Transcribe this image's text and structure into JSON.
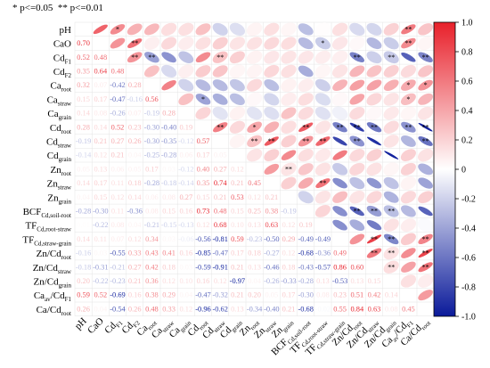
{
  "note": "* p<=0.05  ** p<=0.01",
  "chart_data": {
    "type": "heatmap",
    "colorscale": {
      "min": -1.0,
      "max": 1.0,
      "low_color": "#0a1a9a",
      "mid_color": "#ffffff",
      "high_color": "#e8202a"
    },
    "colorbar_ticks": [
      "1.0",
      "0.8",
      "0.6",
      "0.4",
      "0.2",
      "0",
      "-0.2",
      "-0.4",
      "-0.6",
      "-0.8",
      "-1.0"
    ],
    "variables": [
      {
        "base": "pH",
        "sub": ""
      },
      {
        "base": "CaO",
        "sub": ""
      },
      {
        "base": "Cd",
        "sub": "F1"
      },
      {
        "base": "Cd",
        "sub": "F2"
      },
      {
        "base": "Ca",
        "sub": "root"
      },
      {
        "base": "Ca",
        "sub": "straw"
      },
      {
        "base": "Ca",
        "sub": "grain"
      },
      {
        "base": "Cd",
        "sub": "root"
      },
      {
        "base": "Cd",
        "sub": "straw"
      },
      {
        "base": "Cd",
        "sub": "grain"
      },
      {
        "base": "Zn",
        "sub": "root"
      },
      {
        "base": "Zn",
        "sub": "straw"
      },
      {
        "base": "Zn",
        "sub": "grain"
      },
      {
        "base": "BCF",
        "sub": "Cd,soil-root"
      },
      {
        "base": "TF",
        "sub": "Cd,root-straw"
      },
      {
        "base": "TF",
        "sub": "Cd,straw-grain"
      },
      {
        "base": "Zn/Cd",
        "sub": "root"
      },
      {
        "base": "Zn/Cd",
        "sub": "straw"
      },
      {
        "base": "Zn/Cd",
        "sub": "grain"
      },
      {
        "base": "Ca",
        "sub": "av",
        "suffix": "/Cd",
        "suffix_sub": "F1"
      },
      {
        "base": "Ca/Cd",
        "sub": "root"
      }
    ],
    "lower_values": [
      [],
      [
        0.7
      ],
      [
        0.52,
        0.48
      ],
      [
        0.35,
        0.64,
        0.48
      ],
      [
        0.32,
        0.07,
        -0.42,
        0.28
      ],
      [
        0.15,
        0.17,
        -0.47,
        -0.16,
        0.56
      ],
      [
        0.14,
        0.08,
        -0.26,
        0.07,
        -0.19,
        0.28
      ],
      [
        0.28,
        0.14,
        0.52,
        0.23,
        -0.3,
        -0.4,
        0.19
      ],
      [
        -0.19,
        0.21,
        0.27,
        0.26,
        -0.3,
        -0.35,
        -0.12,
        0.57
      ],
      [
        -0.14,
        0.12,
        0.21,
        0.04,
        -0.25,
        -0.28,
        0.06,
        0.17,
        0.05
      ],
      [
        0.05,
        0.13,
        0.06,
        0.05,
        0.17,
        0.03,
        -0.12,
        0.4,
        0.27,
        0.12
      ],
      [
        0.14,
        0.17,
        0.11,
        0.18,
        -0.28,
        -0.18,
        -0.14,
        0.35,
        0.74,
        0.21,
        0.45
      ],
      [
        0.04,
        0.15,
        0.12,
        0.14,
        0.06,
        0.08,
        0.27,
        0.15,
        0.21,
        0.53,
        0.12,
        0.21
      ],
      [
        -0.28,
        -0.3,
        0.11,
        -0.36,
        0.08,
        0.15,
        0.16,
        0.73,
        0.48,
        0.15,
        0.25,
        0.38,
        -0.19
      ],
      [
        0.01,
        -0.22,
        0.08,
        0.04,
        -0.21,
        -0.15,
        -0.13,
        0.12,
        0.68,
        0.1,
        0.13,
        0.63,
        0.12,
        0.19
      ],
      [
        0.14,
        0.11,
        0.07,
        0.12,
        0.34,
        0.03,
        -0.06,
        -0.56,
        -0.81,
        0.59,
        -0.23,
        -0.5,
        0.29,
        -0.49,
        -0.49
      ],
      [
        -0.16,
        0.03,
        -0.55,
        0.33,
        0.43,
        0.41,
        0.16,
        -0.85,
        -0.47,
        0.17,
        0.18,
        -0.27,
        0.12,
        -0.68,
        -0.36,
        0.49
      ],
      [
        -0.18,
        -0.31,
        -0.21,
        0.27,
        0.42,
        0.18,
        0.03,
        -0.59,
        -0.91,
        0.21,
        0.13,
        -0.46,
        0.18,
        -0.43,
        -0.57,
        0.86,
        0.6
      ],
      [
        0.2,
        -0.22,
        -0.23,
        0.21,
        0.36,
        0.12,
        0.1,
        0.16,
        0.12,
        -0.97,
        0.04,
        -0.26,
        -0.33,
        -0.28,
        0.13,
        -0.53,
        0.13,
        0.15
      ],
      [
        0.59,
        0.52,
        -0.69,
        0.16,
        0.38,
        0.29,
        0.04,
        -0.47,
        -0.32,
        0.21,
        0.2,
        0.05,
        0.17,
        -0.3,
        0.08,
        0.23,
        0.51,
        0.42,
        0.14
      ],
      [
        0.26,
        0.04,
        -0.54,
        0.26,
        0.48,
        0.33,
        0.12,
        -0.96,
        -0.62,
        0.13,
        -0.34,
        -0.4,
        0.21,
        -0.68,
        -0.02,
        0.55,
        0.84,
        0.63,
        0.08,
        0.45
      ]
    ],
    "upper_significance": [
      [
        0,
        1,
        0,
        0,
        0,
        0,
        0,
        0,
        0,
        0,
        0,
        0,
        0,
        0,
        0,
        0,
        0,
        0,
        2,
        0
      ],
      [
        0,
        2,
        0,
        0,
        0,
        0,
        0,
        0,
        0,
        0,
        0,
        0,
        1,
        0,
        0,
        0,
        0,
        2,
        0
      ],
      [
        2,
        2,
        0,
        0,
        0,
        2,
        0,
        0,
        0,
        0,
        0,
        0,
        0,
        2,
        0,
        2,
        0,
        2
      ],
      [
        0,
        0,
        0,
        0,
        0,
        0,
        0,
        0,
        0,
        0,
        0,
        0,
        0,
        0,
        0,
        0,
        0
      ],
      [
        0,
        0,
        0,
        0,
        0,
        0,
        0,
        0,
        0,
        0,
        0,
        0,
        0,
        0,
        1,
        1
      ],
      [
        0,
        1,
        0,
        0,
        0,
        0,
        0,
        0,
        0,
        0,
        0,
        0,
        0,
        1,
        0
      ],
      [
        0,
        0,
        0,
        0,
        0,
        0,
        0,
        0,
        0,
        0,
        0,
        0,
        0,
        0
      ],
      [
        2,
        0,
        1,
        0,
        0,
        2,
        0,
        2,
        2,
        2,
        0,
        2,
        2
      ],
      [
        0,
        2,
        2,
        0,
        2,
        2,
        0,
        2,
        0,
        0,
        0,
        2
      ],
      [
        0,
        0,
        0,
        0,
        0,
        0,
        0,
        0,
        0,
        0,
        0
      ],
      [
        0,
        2,
        0,
        0,
        0,
        0,
        0,
        0,
        0,
        0
      ],
      [
        0,
        0,
        2,
        0,
        0,
        0,
        0,
        0,
        0
      ],
      [
        0,
        0,
        0,
        0,
        0,
        0,
        0,
        0
      ],
      [
        0,
        0,
        2,
        2,
        2,
        0,
        0
      ],
      [
        0,
        0,
        0,
        0,
        0,
        0
      ],
      [
        0,
        2,
        2,
        0,
        2
      ],
      [
        2,
        2,
        0,
        2
      ],
      [
        2,
        0,
        2
      ],
      [
        0,
        0
      ],
      [
        0
      ]
    ]
  }
}
